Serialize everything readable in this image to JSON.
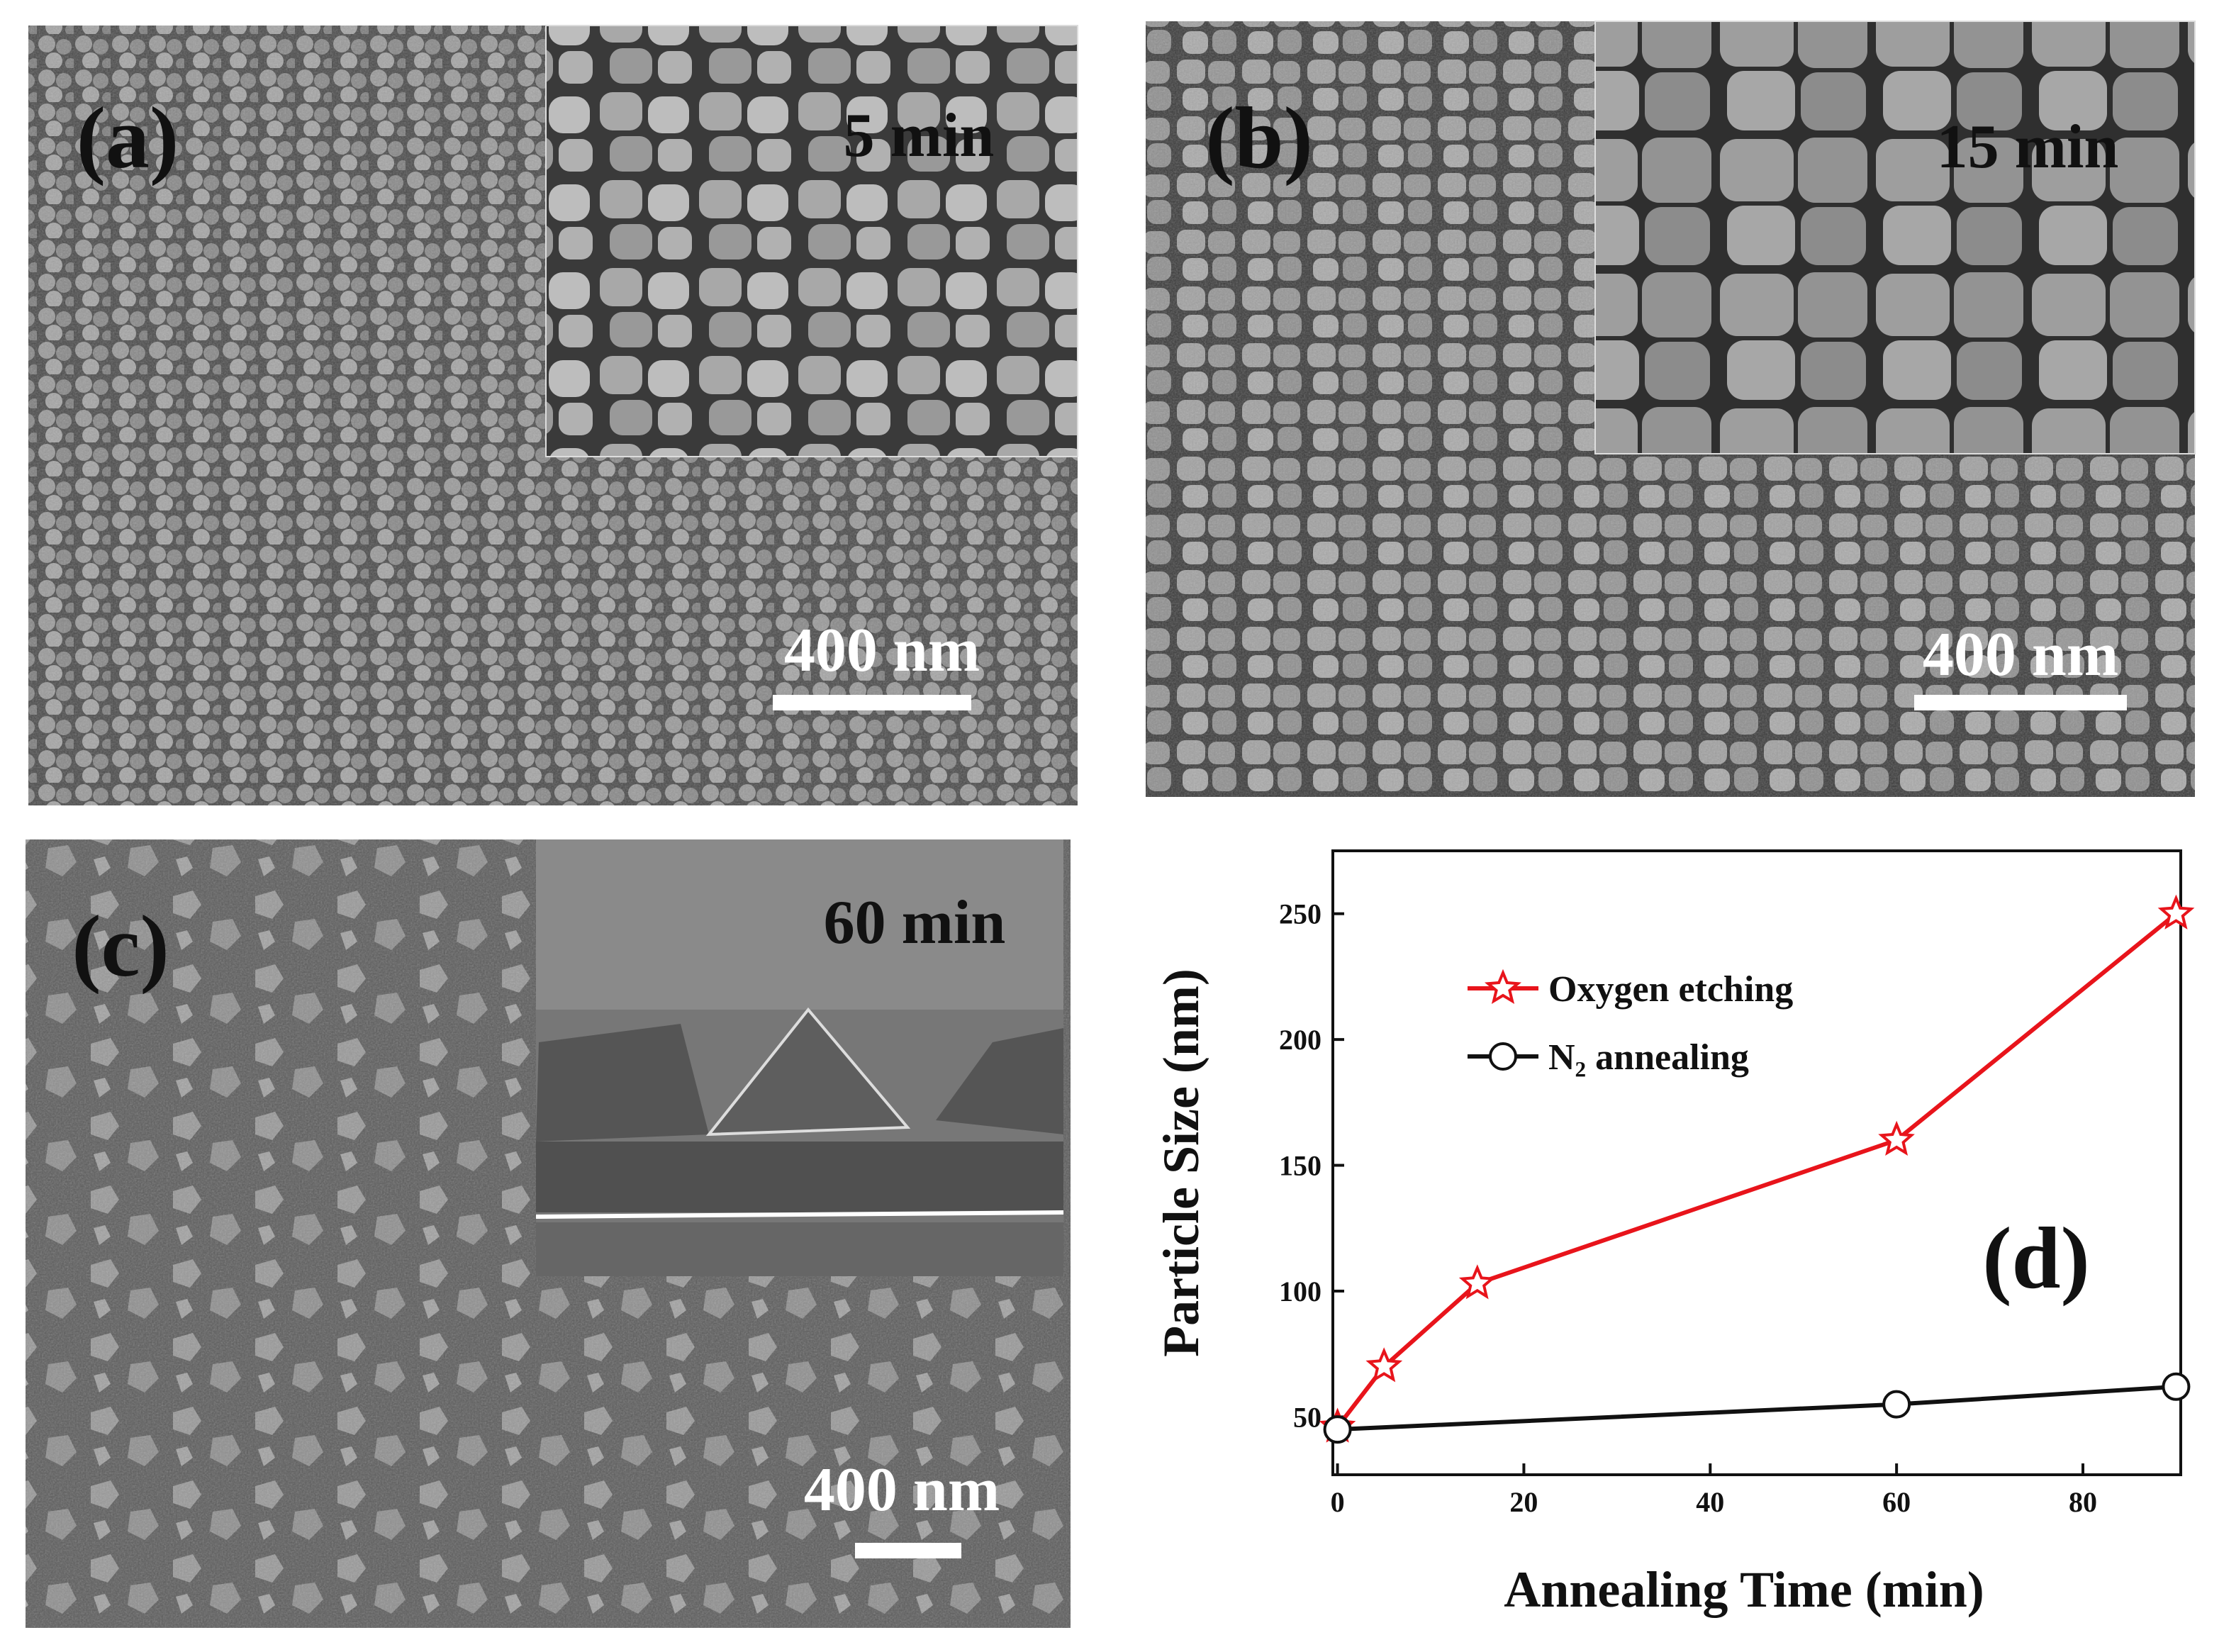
{
  "panels": [
    {
      "label": "(a)",
      "time": "5 min",
      "scale": "400 nm"
    },
    {
      "label": "(b)",
      "time": "15 min",
      "scale": "400 nm"
    },
    {
      "label": "(c)",
      "time": "60 min",
      "scale": "400 nm"
    }
  ],
  "chart_data": {
    "type": "line",
    "label": "(d)",
    "x_label": "Annealing Time (min)",
    "y_label": "Particle Size (nm)",
    "xlim": [
      -0.5,
      90.5
    ],
    "ylim": [
      27,
      275
    ],
    "xticks": [
      0,
      20,
      40,
      60,
      80
    ],
    "yticks": [
      50,
      100,
      150,
      200,
      250
    ],
    "series": [
      {
        "name": "Oxygen etching",
        "color": "#e8141b",
        "marker": "star",
        "x": [
          0,
          5,
          15,
          60,
          90
        ],
        "values": [
          46,
          70,
          103,
          160,
          250
        ]
      },
      {
        "name": "N₂ annealing",
        "color": "#111111",
        "marker": "circle",
        "x": [
          0,
          60,
          90
        ],
        "values": [
          45,
          55,
          62
        ]
      }
    ]
  }
}
